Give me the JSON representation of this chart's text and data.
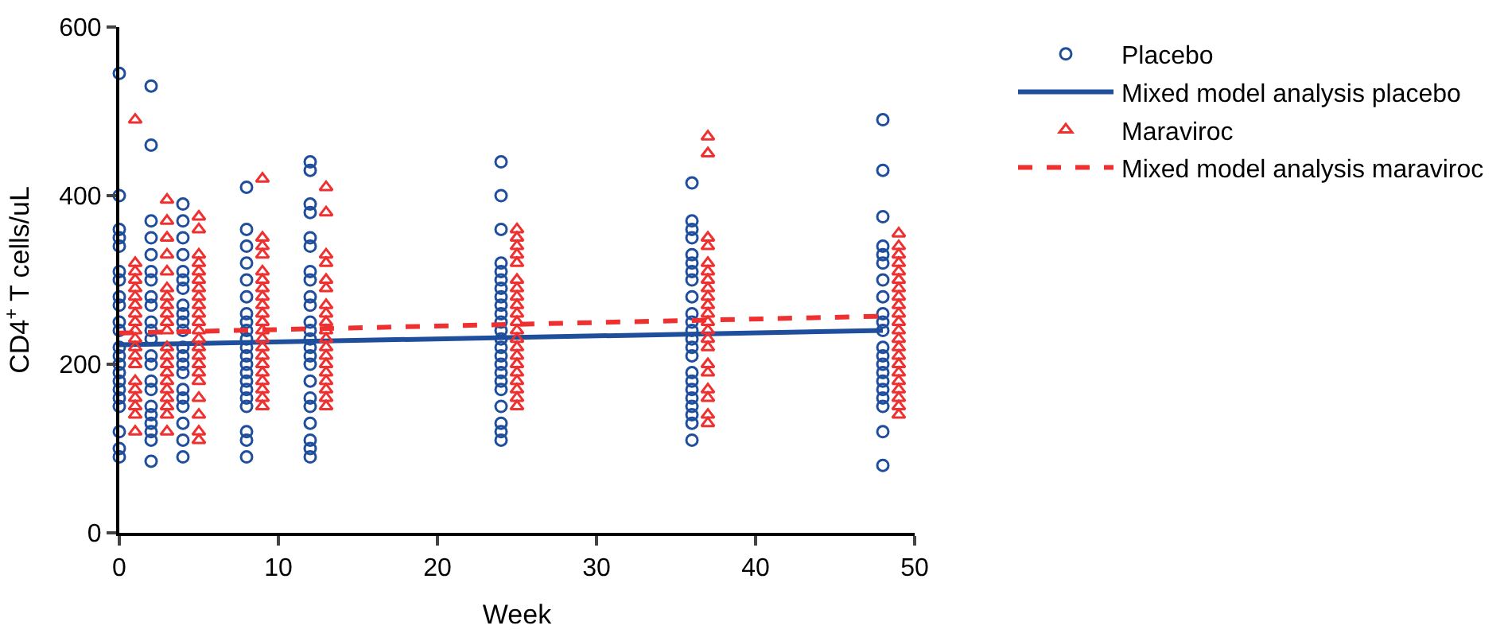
{
  "chart_data": {
    "type": "scatter",
    "xlabel": "Week",
    "ylabel": "CD4$^{+}$ T cells/uL",
    "xlim": [
      0,
      50
    ],
    "xticks": [
      0,
      10,
      20,
      30,
      40,
      50
    ],
    "ylim": [
      0,
      600
    ],
    "yticks": [
      0,
      200,
      400,
      600
    ],
    "grid": false,
    "legend": "right",
    "series": [
      {
        "name": "Placebo",
        "type": "scatter",
        "marker": "circle",
        "color": "#1f4e9c",
        "x": [
          0,
          0,
          0,
          0,
          0,
          0,
          0,
          0,
          0,
          0,
          0,
          0,
          0,
          0,
          0,
          0,
          0,
          0,
          0,
          0,
          0,
          0,
          2,
          2,
          2,
          2,
          2,
          2,
          2,
          2,
          2,
          2,
          2,
          2,
          2,
          2,
          2,
          2,
          2,
          2,
          2,
          2,
          2,
          2,
          4,
          4,
          4,
          4,
          4,
          4,
          4,
          4,
          4,
          4,
          4,
          4,
          4,
          4,
          4,
          4,
          4,
          4,
          4,
          4,
          4,
          8,
          8,
          8,
          8,
          8,
          8,
          8,
          8,
          8,
          8,
          8,
          8,
          8,
          8,
          8,
          8,
          8,
          8,
          8,
          8,
          8,
          12,
          12,
          12,
          12,
          12,
          12,
          12,
          12,
          12,
          12,
          12,
          12,
          12,
          12,
          12,
          12,
          12,
          12,
          12,
          12,
          12,
          12,
          12,
          24,
          24,
          24,
          24,
          24,
          24,
          24,
          24,
          24,
          24,
          24,
          24,
          24,
          24,
          24,
          24,
          24,
          24,
          24,
          24,
          24,
          24,
          24,
          36,
          36,
          36,
          36,
          36,
          36,
          36,
          36,
          36,
          36,
          36,
          36,
          36,
          36,
          36,
          36,
          36,
          36,
          36,
          36,
          36,
          36,
          36,
          48,
          48,
          48,
          48,
          48,
          48,
          48,
          48,
          48,
          48,
          48,
          48,
          48,
          48,
          48,
          48,
          48,
          48,
          48,
          48,
          48
        ],
        "values": [
          545,
          400,
          360,
          350,
          340,
          310,
          300,
          280,
          270,
          250,
          240,
          220,
          210,
          200,
          190,
          180,
          170,
          160,
          150,
          120,
          100,
          90,
          530,
          460,
          370,
          350,
          330,
          310,
          300,
          280,
          270,
          250,
          240,
          230,
          210,
          200,
          180,
          170,
          150,
          140,
          130,
          120,
          110,
          85,
          390,
          370,
          350,
          330,
          310,
          300,
          290,
          270,
          260,
          250,
          240,
          220,
          210,
          200,
          190,
          170,
          160,
          150,
          130,
          110,
          90,
          410,
          360,
          340,
          320,
          300,
          280,
          260,
          250,
          240,
          230,
          220,
          210,
          200,
          190,
          180,
          170,
          160,
          150,
          120,
          110,
          90,
          440,
          430,
          390,
          380,
          350,
          340,
          310,
          300,
          280,
          270,
          250,
          240,
          230,
          220,
          210,
          200,
          180,
          160,
          150,
          130,
          110,
          100,
          90,
          440,
          400,
          360,
          320,
          310,
          300,
          290,
          280,
          270,
          260,
          250,
          240,
          230,
          220,
          210,
          200,
          190,
          180,
          170,
          150,
          130,
          120,
          110,
          415,
          370,
          360,
          350,
          330,
          320,
          310,
          300,
          280,
          260,
          250,
          240,
          230,
          220,
          210,
          190,
          180,
          170,
          160,
          150,
          140,
          130,
          110,
          490,
          430,
          375,
          340,
          330,
          320,
          300,
          280,
          260,
          250,
          240,
          220,
          210,
          200,
          190,
          180,
          170,
          160,
          150,
          120,
          80
        ]
      },
      {
        "name": "Mixed model analysis placebo",
        "type": "line",
        "line_style": "solid",
        "color": "#1f4e9c",
        "x": [
          0,
          48
        ],
        "values": [
          223,
          240
        ]
      },
      {
        "name": "Maraviroc",
        "type": "scatter",
        "marker": "triangle",
        "color": "#ee3030",
        "x": [
          1,
          1,
          1,
          1,
          1,
          1,
          1,
          1,
          1,
          1,
          1,
          1,
          1,
          1,
          1,
          1,
          1,
          1,
          1,
          1,
          3,
          3,
          3,
          3,
          3,
          3,
          3,
          3,
          3,
          3,
          3,
          3,
          3,
          3,
          3,
          3,
          3,
          3,
          3,
          3,
          3,
          5,
          5,
          5,
          5,
          5,
          5,
          5,
          5,
          5,
          5,
          5,
          5,
          5,
          5,
          5,
          5,
          5,
          5,
          5,
          5,
          5,
          5,
          9,
          9,
          9,
          9,
          9,
          9,
          9,
          9,
          9,
          9,
          9,
          9,
          9,
          9,
          9,
          9,
          9,
          9,
          9,
          9,
          9,
          13,
          13,
          13,
          13,
          13,
          13,
          13,
          13,
          13,
          13,
          13,
          13,
          13,
          13,
          13,
          13,
          13,
          13,
          13,
          25,
          25,
          25,
          25,
          25,
          25,
          25,
          25,
          25,
          25,
          25,
          25,
          25,
          25,
          25,
          25,
          25,
          25,
          25,
          25,
          25,
          37,
          37,
          37,
          37,
          37,
          37,
          37,
          37,
          37,
          37,
          37,
          37,
          37,
          37,
          37,
          37,
          37,
          37,
          37,
          37,
          37,
          49,
          49,
          49,
          49,
          49,
          49,
          49,
          49,
          49,
          49,
          49,
          49,
          49,
          49,
          49,
          49,
          49,
          49,
          49,
          49,
          49,
          49
        ],
        "values": [
          490,
          320,
          310,
          300,
          290,
          280,
          270,
          260,
          250,
          240,
          230,
          220,
          210,
          200,
          180,
          170,
          160,
          150,
          140,
          120,
          395,
          370,
          350,
          330,
          310,
          290,
          280,
          270,
          260,
          250,
          240,
          220,
          210,
          200,
          190,
          180,
          170,
          160,
          150,
          140,
          120,
          375,
          360,
          330,
          320,
          310,
          300,
          290,
          280,
          270,
          260,
          250,
          240,
          230,
          220,
          210,
          200,
          190,
          180,
          160,
          140,
          120,
          110,
          420,
          350,
          340,
          330,
          310,
          300,
          290,
          280,
          270,
          260,
          250,
          240,
          230,
          220,
          210,
          200,
          190,
          180,
          170,
          160,
          150,
          410,
          380,
          330,
          320,
          300,
          290,
          270,
          260,
          250,
          240,
          230,
          220,
          210,
          200,
          190,
          180,
          170,
          160,
          150,
          360,
          350,
          340,
          330,
          320,
          300,
          290,
          280,
          270,
          260,
          250,
          240,
          230,
          220,
          210,
          200,
          190,
          180,
          170,
          160,
          150,
          470,
          450,
          350,
          340,
          320,
          310,
          300,
          290,
          280,
          270,
          260,
          250,
          240,
          230,
          220,
          200,
          190,
          170,
          160,
          140,
          130,
          355,
          340,
          330,
          320,
          310,
          300,
          290,
          280,
          270,
          260,
          250,
          240,
          230,
          220,
          210,
          200,
          190,
          180,
          170,
          160,
          150,
          140
        ]
      },
      {
        "name": "Mixed model analysis maraviroc",
        "type": "line",
        "line_style": "dashed",
        "color": "#ee3030",
        "x": [
          0,
          48
        ],
        "values": [
          237,
          257
        ]
      }
    ]
  }
}
